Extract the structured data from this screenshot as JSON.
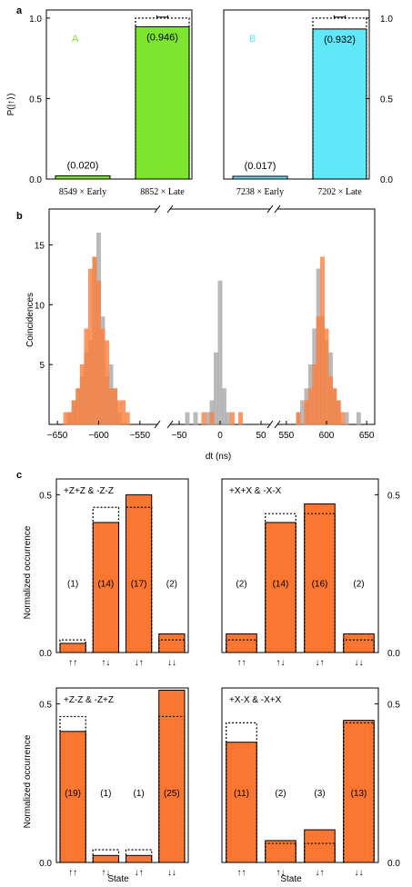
{
  "colors": {
    "green": "#7ee52e",
    "cyan": "#5ee8f8",
    "orange": "#fb7631",
    "orange_hist": "#fb7e3c",
    "gray_hist": "#a8a8a8",
    "label_A": "#7ee52e",
    "label_B": "#5ee8f8"
  },
  "chart_data": [
    {
      "panel": "a",
      "panel_label": "a",
      "type": "bar",
      "ylabel": "P(|↑⟩)",
      "ylim": [
        0,
        1.05
      ],
      "yticks": [
        "0.0",
        "0.5",
        "1.0"
      ],
      "yticks_values": [
        0,
        0.5,
        1.0
      ],
      "subplots": [
        {
          "label": "A",
          "categories": [
            "8549 × Early",
            "8852 × Late"
          ],
          "values": [
            0.02,
            0.946
          ],
          "value_labels": [
            "(0.020)",
            "(0.946)"
          ],
          "ideal": [
            0.0,
            1.0
          ],
          "color": "#7ee52e"
        },
        {
          "label": "B",
          "categories": [
            "7238 × Early",
            "7202 × Late"
          ],
          "values": [
            0.017,
            0.932
          ],
          "value_labels": [
            "(0.017)",
            "(0.932)"
          ],
          "ideal": [
            0.0,
            1.0
          ],
          "color": "#5ee8f8"
        }
      ]
    },
    {
      "panel": "b",
      "panel_label": "b",
      "type": "histogram",
      "xlabel": "dt (ns)",
      "ylabel": "Coincidences",
      "broken_axis_segments": [
        [
          -660,
          -530
        ],
        [
          -60,
          60
        ],
        [
          540,
          660
        ]
      ],
      "xticks": [
        -650,
        -600,
        -550,
        -50,
        0,
        50,
        550,
        600,
        650
      ],
      "xtick_labels": [
        "−650",
        "−600",
        "−550",
        "−50",
        "0",
        "50",
        "550",
        "600",
        "650"
      ],
      "ylim": [
        0,
        18
      ],
      "yticks": [
        5,
        10,
        15
      ],
      "yticks_labels": [
        "5",
        "10",
        "15"
      ],
      "bin_width": 5,
      "series": [
        {
          "color": "gray",
          "bins": [
            [
              -635,
              1
            ],
            [
              -630,
              2
            ],
            [
              -625,
              3
            ],
            [
              -620,
              4
            ],
            [
              -615,
              6
            ],
            [
              -610,
              7
            ],
            [
              -605,
              14
            ],
            [
              -600,
              16
            ],
            [
              -595,
              9
            ],
            [
              -590,
              4
            ],
            [
              -585,
              5
            ],
            [
              -580,
              3
            ],
            [
              -575,
              1
            ],
            [
              -40,
              1
            ],
            [
              -30,
              1
            ],
            [
              -15,
              1
            ],
            [
              -10,
              2
            ],
            [
              -5,
              6
            ],
            [
              0,
              12
            ],
            [
              5,
              3
            ],
            [
              10,
              1
            ],
            [
              565,
              1
            ],
            [
              570,
              2
            ],
            [
              575,
              3
            ],
            [
              580,
              5
            ],
            [
              585,
              8
            ],
            [
              590,
              13
            ],
            [
              595,
              9
            ],
            [
              600,
              7
            ],
            [
              605,
              6
            ],
            [
              610,
              3
            ],
            [
              615,
              2
            ],
            [
              625,
              1
            ],
            [
              640,
              1
            ]
          ]
        },
        {
          "color": "orange",
          "bins": [
            [
              -640,
              1
            ],
            [
              -635,
              1
            ],
            [
              -630,
              2
            ],
            [
              -625,
              3
            ],
            [
              -620,
              5
            ],
            [
              -615,
              8
            ],
            [
              -610,
              13
            ],
            [
              -605,
              14
            ],
            [
              -600,
              12
            ],
            [
              -595,
              8
            ],
            [
              -590,
              7
            ],
            [
              -585,
              3
            ],
            [
              -580,
              3
            ],
            [
              -575,
              2
            ],
            [
              -570,
              2
            ],
            [
              -565,
              1
            ],
            [
              -20,
              1
            ],
            [
              -10,
              1
            ],
            [
              15,
              1
            ],
            [
              25,
              1
            ],
            [
              565,
              1
            ],
            [
              575,
              2
            ],
            [
              580,
              3
            ],
            [
              585,
              5
            ],
            [
              590,
              9
            ],
            [
              595,
              14
            ],
            [
              600,
              8
            ],
            [
              605,
              4
            ],
            [
              610,
              3
            ],
            [
              615,
              2
            ],
            [
              620,
              1
            ]
          ]
        }
      ]
    },
    {
      "panel": "c",
      "panel_label": "c",
      "type": "bar",
      "ylabel": "Normalized occurrence",
      "xlabel": "State",
      "ylim": [
        0,
        0.55
      ],
      "yticks": [
        "0.0",
        "0.5"
      ],
      "yticks_values": [
        0,
        0.5
      ],
      "categories": [
        "↑↑",
        "↑↓",
        "↓↑",
        "↓↓"
      ],
      "color": "#fb7631",
      "subplots": [
        {
          "title": "+Z+Z & -Z-Z",
          "values": [
            0.029,
            0.412,
            0.5,
            0.059
          ],
          "count_labels": [
            "(1)",
            "(14)",
            "(17)",
            "(2)"
          ],
          "ideal": [
            0.04,
            0.46,
            0.46,
            0.04
          ]
        },
        {
          "title": "+X+X & -X-X",
          "values": [
            0.059,
            0.412,
            0.471,
            0.059
          ],
          "count_labels": [
            "(2)",
            "(14)",
            "(16)",
            "(2)"
          ],
          "ideal": [
            0.04,
            0.44,
            0.44,
            0.04
          ]
        },
        {
          "title": "+Z-Z & -Z+Z",
          "values": [
            0.413,
            0.022,
            0.022,
            0.543
          ],
          "count_labels": [
            "(19)",
            "(1)",
            "(1)",
            "(25)"
          ],
          "ideal": [
            0.46,
            0.04,
            0.04,
            0.46
          ]
        },
        {
          "title": "+X-X & -X+X",
          "values": [
            0.379,
            0.069,
            0.103,
            0.448
          ],
          "count_labels": [
            "(11)",
            "(2)",
            "(3)",
            "(13)"
          ],
          "ideal": [
            0.44,
            0.06,
            0.06,
            0.44
          ]
        }
      ]
    }
  ]
}
